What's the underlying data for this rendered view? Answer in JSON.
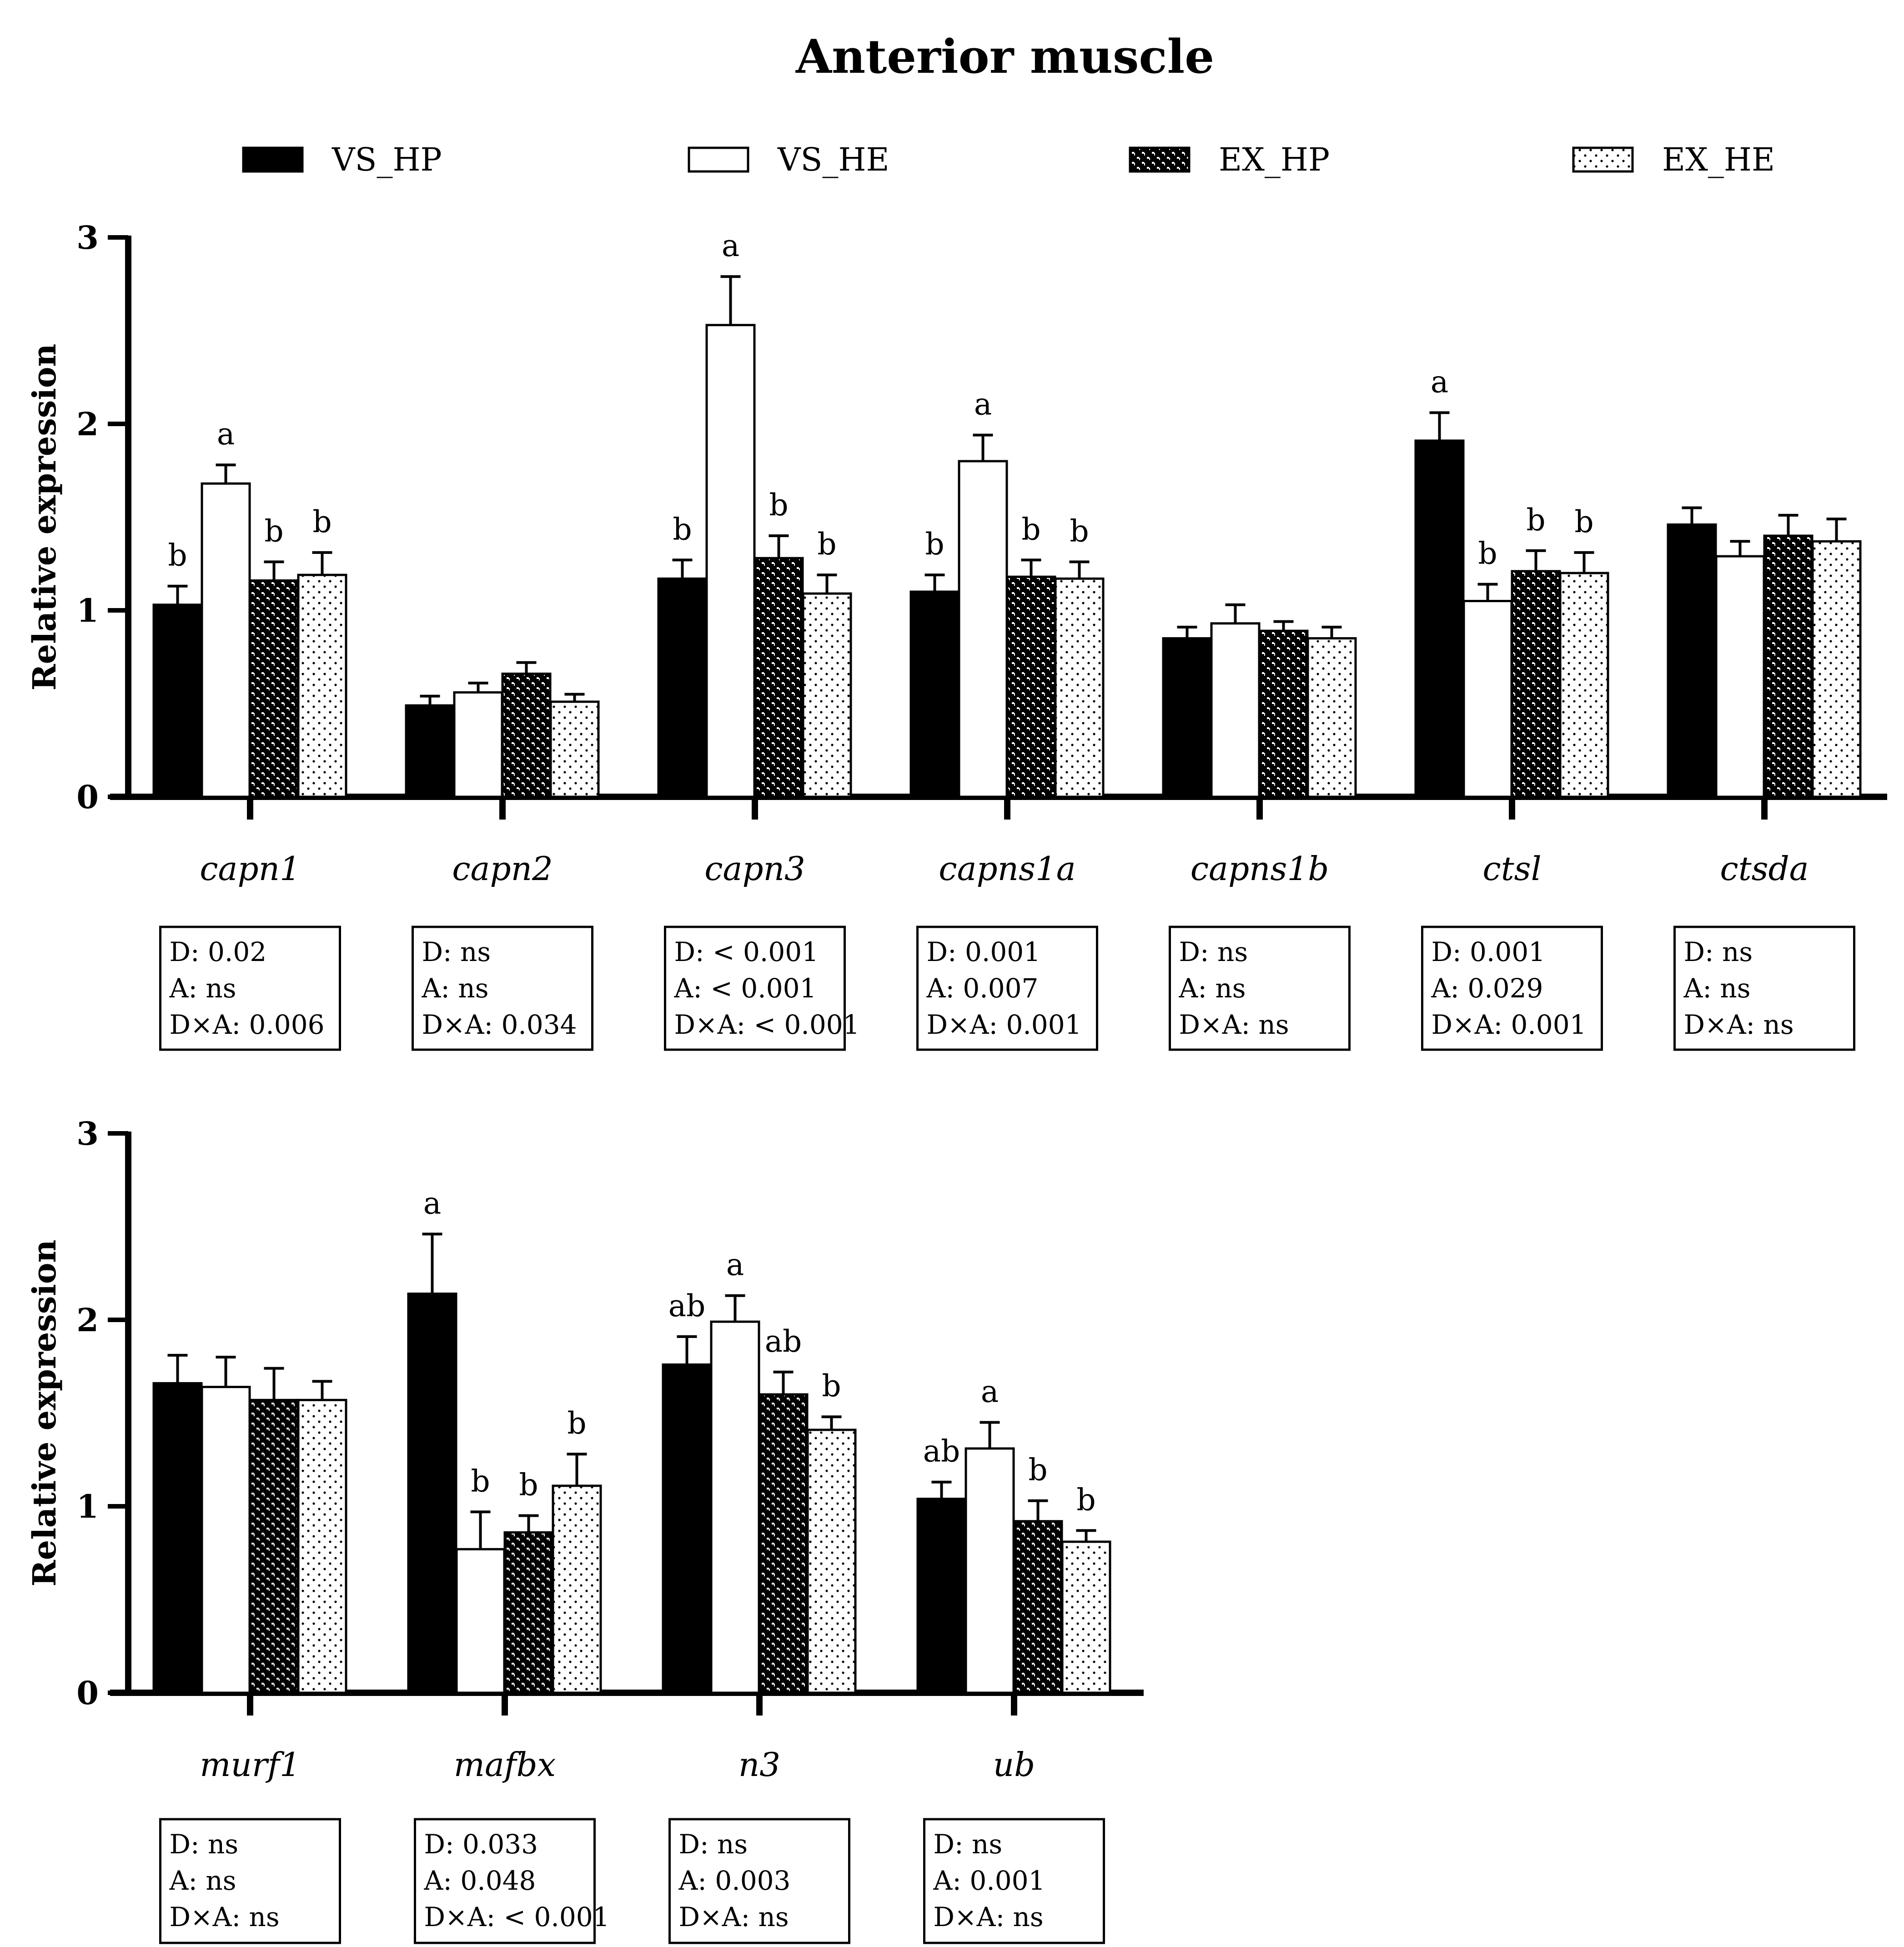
{
  "title": "Anterior muscle",
  "colors": {
    "ink": "#000000",
    "paper": "#ffffff"
  },
  "legend": [
    {
      "name": "VS_HP",
      "fill": "solid-black"
    },
    {
      "name": "VS_HE",
      "fill": "white"
    },
    {
      "name": "EX_HP",
      "fill": "dark-pattern"
    },
    {
      "name": "EX_HE",
      "fill": "dotted"
    }
  ],
  "chart_data": [
    {
      "type": "bar",
      "ylabel": "Relative expression",
      "ylim": [
        0,
        3
      ],
      "yticks": [
        "0",
        "1",
        "2",
        "3"
      ],
      "categories": [
        "capn1",
        "capn2",
        "capn3",
        "capns1a",
        "capns1b",
        "ctsl",
        "ctsda"
      ],
      "series": [
        {
          "name": "VS_HP",
          "values": [
            1.03,
            0.49,
            1.17,
            1.1,
            0.85,
            1.91,
            1.46
          ],
          "errors": [
            0.1,
            0.05,
            0.1,
            0.09,
            0.06,
            0.15,
            0.09
          ]
        },
        {
          "name": "VS_HE",
          "values": [
            1.68,
            0.56,
            2.53,
            1.8,
            0.93,
            1.05,
            1.29
          ],
          "errors": [
            0.1,
            0.05,
            0.26,
            0.14,
            0.1,
            0.09,
            0.08
          ]
        },
        {
          "name": "EX_HP",
          "values": [
            1.16,
            0.66,
            1.28,
            1.18,
            0.89,
            1.21,
            1.4
          ],
          "errors": [
            0.1,
            0.06,
            0.12,
            0.09,
            0.05,
            0.11,
            0.11
          ]
        },
        {
          "name": "EX_HE",
          "values": [
            1.19,
            0.51,
            1.09,
            1.17,
            0.85,
            1.2,
            1.37
          ],
          "errors": [
            0.12,
            0.04,
            0.1,
            0.09,
            0.06,
            0.11,
            0.12
          ]
        }
      ],
      "letters": [
        [
          "b",
          "a",
          "b",
          "b"
        ],
        [
          "",
          "",
          "",
          ""
        ],
        [
          "b",
          "a",
          "b",
          "b"
        ],
        [
          "b",
          "a",
          "b",
          "b"
        ],
        [
          "",
          "",
          "",
          ""
        ],
        [
          "a",
          "b",
          "b",
          "b"
        ],
        [
          "",
          "",
          "",
          ""
        ]
      ],
      "stats": [
        [
          "D: 0.02",
          "A: ns",
          "D×A: 0.006"
        ],
        [
          "D: ns",
          "A: ns",
          "D×A: 0.034"
        ],
        [
          "D: < 0.001",
          "A: < 0.001",
          "D×A: < 0.001"
        ],
        [
          "D: 0.001",
          "A: 0.007",
          "D×A: 0.001"
        ],
        [
          "D: ns",
          "A: ns",
          "D×A: ns"
        ],
        [
          "D: 0.001",
          "A: 0.029",
          "D×A: 0.001"
        ],
        [
          "D: ns",
          "A: ns",
          "D×A: ns"
        ]
      ]
    },
    {
      "type": "bar",
      "ylabel": "Relative expression",
      "ylim": [
        0,
        3
      ],
      "yticks": [
        "0",
        "1",
        "2",
        "3"
      ],
      "categories": [
        "murf1",
        "mafbx",
        "n3",
        "ub"
      ],
      "series": [
        {
          "name": "VS_HP",
          "values": [
            1.66,
            2.14,
            1.76,
            1.04
          ],
          "errors": [
            0.15,
            0.32,
            0.15,
            0.09
          ]
        },
        {
          "name": "VS_HE",
          "values": [
            1.64,
            0.77,
            1.99,
            1.31
          ],
          "errors": [
            0.16,
            0.2,
            0.14,
            0.14
          ]
        },
        {
          "name": "EX_HP",
          "values": [
            1.57,
            0.86,
            1.6,
            0.92
          ],
          "errors": [
            0.17,
            0.09,
            0.12,
            0.11
          ]
        },
        {
          "name": "EX_HE",
          "values": [
            1.57,
            1.11,
            1.41,
            0.81
          ],
          "errors": [
            0.1,
            0.17,
            0.07,
            0.06
          ]
        }
      ],
      "letters": [
        [
          "",
          "",
          "",
          ""
        ],
        [
          "a",
          "b",
          "b",
          "b"
        ],
        [
          "ab",
          "a",
          "ab",
          "b"
        ],
        [
          "ab",
          "a",
          "b",
          "b"
        ]
      ],
      "stats": [
        [
          "D: ns",
          "A: ns",
          "D×A: ns"
        ],
        [
          "D: 0.033",
          "A: 0.048",
          "D×A: < 0.001"
        ],
        [
          "D: ns",
          "A: 0.003",
          "D×A: ns"
        ],
        [
          "D: ns",
          "A: 0.001",
          "D×A: ns"
        ]
      ]
    }
  ]
}
